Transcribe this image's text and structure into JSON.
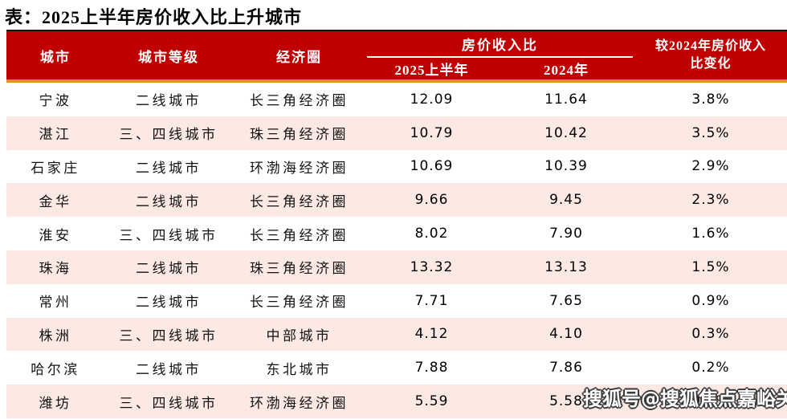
{
  "title": "表：2025上半年房价收入比上升城市",
  "watermark": "搜狐号@搜狐焦点嘉峪关站",
  "colors": {
    "header_bg": "#c00000",
    "header_top_border": "#240a08",
    "accent_line": "#ee8a2e",
    "row_alt_bg": "#fce9e3",
    "header_text": "#ffffff",
    "body_text": "#111111",
    "watermark_text": "#ffffff",
    "watermark_outline": "#3a3a3a"
  },
  "table": {
    "headers": {
      "city": "城市",
      "tier": "城市等级",
      "region": "经济圈",
      "ratio_group": "房价收入比",
      "h1_2025": "2025上半年",
      "y2024": "2024年",
      "change_full": "较2024年房价收入比变化",
      "change_lines": [
        "较2024年房价收入",
        "比变化"
      ]
    },
    "rows": [
      {
        "city": "宁波",
        "tier": "二线城市",
        "region": "长三角经济圈",
        "h1_2025": "12.09",
        "y2024": "11.64",
        "change": "3.8%"
      },
      {
        "city": "湛江",
        "tier": "三、四线城市",
        "region": "珠三角经济圈",
        "h1_2025": "10.79",
        "y2024": "10.42",
        "change": "3.5%"
      },
      {
        "city": "石家庄",
        "tier": "二线城市",
        "region": "环渤海经济圈",
        "h1_2025": "10.69",
        "y2024": "10.39",
        "change": "2.9%"
      },
      {
        "city": "金华",
        "tier": "二线城市",
        "region": "长三角经济圈",
        "h1_2025": "9.66",
        "y2024": "9.45",
        "change": "2.3%"
      },
      {
        "city": "淮安",
        "tier": "三、四线城市",
        "region": "长三角经济圈",
        "h1_2025": "8.02",
        "y2024": "7.90",
        "change": "1.6%"
      },
      {
        "city": "珠海",
        "tier": "二线城市",
        "region": "珠三角经济圈",
        "h1_2025": "13.32",
        "y2024": "13.13",
        "change": "1.5%"
      },
      {
        "city": "常州",
        "tier": "二线城市",
        "region": "长三角经济圈",
        "h1_2025": "7.71",
        "y2024": "7.65",
        "change": "0.9%"
      },
      {
        "city": "株洲",
        "tier": "三、四线城市",
        "region": "中部城市",
        "h1_2025": "4.12",
        "y2024": "4.10",
        "change": "0.3%"
      },
      {
        "city": "哈尔滨",
        "tier": "二线城市",
        "region": "东北城市",
        "h1_2025": "7.88",
        "y2024": "7.86",
        "change": "0.2%"
      },
      {
        "city": "潍坊",
        "tier": "三、四线城市",
        "region": "环渤海经济圈",
        "h1_2025": "5.59",
        "y2024": "5.58",
        "change": "0.2%"
      }
    ]
  },
  "chart_data": {
    "type": "table",
    "title": "表：2025上半年房价收入比上升城市",
    "columns": [
      "城市",
      "城市等级",
      "经济圈",
      "房价收入比 2025上半年",
      "房价收入比 2024年",
      "较2024年房价收入比变化"
    ],
    "rows": [
      [
        "宁波",
        "二线城市",
        "长三角经济圈",
        12.09,
        11.64,
        "3.8%"
      ],
      [
        "湛江",
        "三、四线城市",
        "珠三角经济圈",
        10.79,
        10.42,
        "3.5%"
      ],
      [
        "石家庄",
        "二线城市",
        "环渤海经济圈",
        10.69,
        10.39,
        "2.9%"
      ],
      [
        "金华",
        "二线城市",
        "长三角经济圈",
        9.66,
        9.45,
        "2.3%"
      ],
      [
        "淮安",
        "三、四线城市",
        "长三角经济圈",
        8.02,
        7.9,
        "1.6%"
      ],
      [
        "珠海",
        "二线城市",
        "珠三角经济圈",
        13.32,
        13.13,
        "1.5%"
      ],
      [
        "常州",
        "二线城市",
        "长三角经济圈",
        7.71,
        7.65,
        "0.9%"
      ],
      [
        "株洲",
        "三、四线城市",
        "中部城市",
        4.12,
        4.1,
        "0.3%"
      ],
      [
        "哈尔滨",
        "二线城市",
        "东北城市",
        7.88,
        7.86,
        "0.2%"
      ],
      [
        "潍坊",
        "三、四线城市",
        "环渤海经济圈",
        5.59,
        5.58,
        "0.2%"
      ]
    ]
  }
}
